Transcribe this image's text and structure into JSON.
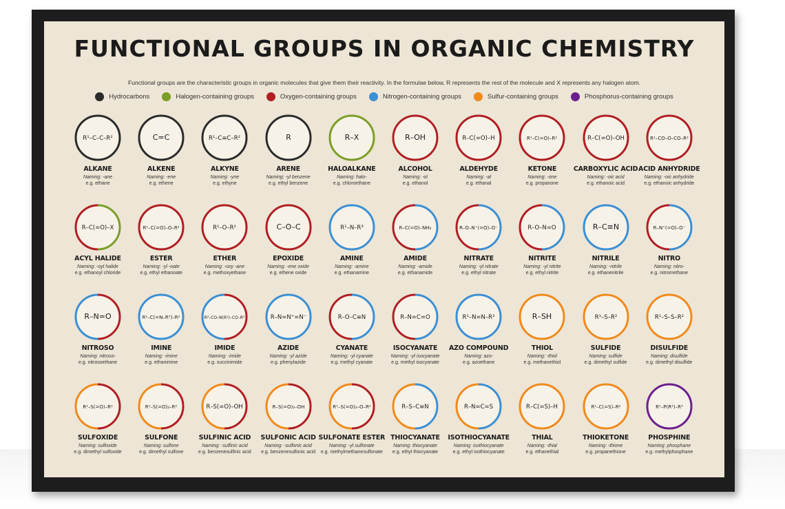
{
  "title": "FUNCTIONAL GROUPS IN ORGANIC CHEMISTRY",
  "intro": "Functional groups are the characteristic groups in organic molecules that give them their reactivity. In the formulae below, R represents the rest of the molecule and X represents any halogen atom.",
  "colors": {
    "hydrocarbons": "#2b2b2b",
    "halogen": "#7a9e26",
    "oxygen": "#b01e23",
    "nitrogen": "#3b8fd4",
    "sulfur": "#f08a1c",
    "phosphorus": "#6a1f8e"
  },
  "legend": [
    {
      "label": "Hydrocarbons",
      "color": "#2b2b2b"
    },
    {
      "label": "Halogen-containing groups",
      "color": "#7a9e26"
    },
    {
      "label": "Oxygen-containing groups",
      "color": "#b01e23"
    },
    {
      "label": "Nitrogen-containing groups",
      "color": "#3b8fd4"
    },
    {
      "label": "Sulfur-containing groups",
      "color": "#f08a1c"
    },
    {
      "label": "Phosphorus-containing groups",
      "color": "#6a1f8e"
    }
  ],
  "groups": [
    {
      "name": "ALKANE",
      "naming": "Naming: -ane",
      "example": "e.g. ethane",
      "formula": "R¹–C–C–R²",
      "colors": [
        "#2b2b2b"
      ]
    },
    {
      "name": "ALKENE",
      "naming": "Naming: -ene",
      "example": "e.g. ethene",
      "formula": "C=C",
      "colors": [
        "#2b2b2b"
      ]
    },
    {
      "name": "ALKYNE",
      "naming": "Naming: -yne",
      "example": "e.g. ethyne",
      "formula": "R¹–C≡C–R²",
      "colors": [
        "#2b2b2b"
      ]
    },
    {
      "name": "ARENE",
      "naming": "Naming: -yl benzene",
      "example": "e.g. ethyl benzene",
      "formula": "R",
      "colors": [
        "#2b2b2b"
      ]
    },
    {
      "name": "HALOALKANE",
      "naming": "Naming: halo-",
      "example": "e.g. chloroethane",
      "formula": "R–X",
      "colors": [
        "#7a9e26"
      ]
    },
    {
      "name": "ALCOHOL",
      "naming": "Naming: -ol",
      "example": "e.g. ethanol",
      "formula": "R–OH",
      "colors": [
        "#b01e23"
      ]
    },
    {
      "name": "ALDEHYDE",
      "naming": "Naming: -al",
      "example": "e.g. ethanal",
      "formula": "R–C(=O)–H",
      "colors": [
        "#b01e23"
      ]
    },
    {
      "name": "KETONE",
      "naming": "Naming: -one",
      "example": "e.g. propanone",
      "formula": "R¹–C(=O)–R²",
      "colors": [
        "#b01e23"
      ]
    },
    {
      "name": "CARBOXYLIC ACID",
      "naming": "Naming: -oic acid",
      "example": "e.g. ethanoic acid",
      "formula": "R–C(=O)–OH",
      "colors": [
        "#b01e23"
      ]
    },
    {
      "name": "ACID ANHYDRIDE",
      "naming": "Naming: -oic anhydride",
      "example": "e.g. ethanoic anhydride",
      "formula": "R¹–CO–O–CO–R²",
      "colors": [
        "#b01e23"
      ]
    },
    {
      "name": "ACYL HALIDE",
      "naming": "Naming: -oyl halide",
      "example": "e.g. ethanoyl chloride",
      "formula": "R–C(=O)–X",
      "colors": [
        "#b01e23",
        "#7a9e26"
      ]
    },
    {
      "name": "ESTER",
      "naming": "Naming: -yl -oate",
      "example": "e.g. ethyl ethanoate",
      "formula": "R¹–C(=O)–O–R²",
      "colors": [
        "#b01e23"
      ]
    },
    {
      "name": "ETHER",
      "naming": "Naming: -oxy -ane",
      "example": "e.g. methoxyethane",
      "formula": "R¹–O–R²",
      "colors": [
        "#b01e23"
      ]
    },
    {
      "name": "EPOXIDE",
      "naming": "Naming: -ene oxide",
      "example": "e.g. ethene oxide",
      "formula": "C–O–C",
      "colors": [
        "#b01e23"
      ]
    },
    {
      "name": "AMINE",
      "naming": "Naming: -amine",
      "example": "e.g. ethanamine",
      "formula": "R¹–N–R³",
      "colors": [
        "#3b8fd4"
      ]
    },
    {
      "name": "AMIDE",
      "naming": "Naming: -amide",
      "example": "e.g. ethanamide",
      "formula": "R–C(=O)–NH₂",
      "colors": [
        "#b01e23",
        "#3b8fd4"
      ]
    },
    {
      "name": "NITRATE",
      "naming": "Naming: -yl nitrate",
      "example": "e.g. ethyl nitrate",
      "formula": "R–O–N⁺(=O)–O⁻",
      "colors": [
        "#b01e23",
        "#3b8fd4"
      ]
    },
    {
      "name": "NITRITE",
      "naming": "Naming: -yl nitrite",
      "example": "e.g. ethyl nitrite",
      "formula": "R–O–N=O",
      "colors": [
        "#b01e23",
        "#3b8fd4"
      ]
    },
    {
      "name": "NITRILE",
      "naming": "Naming: -nitrile",
      "example": "e.g. ethanenitrile",
      "formula": "R–C≡N",
      "colors": [
        "#3b8fd4"
      ]
    },
    {
      "name": "NITRO",
      "naming": "Naming: nitro-",
      "example": "e.g. nitromethane",
      "formula": "R–N⁺(=O)–O⁻",
      "colors": [
        "#b01e23",
        "#3b8fd4"
      ]
    },
    {
      "name": "NITROSO",
      "naming": "Naming: nitroso-",
      "example": "e.g. nitrosoethane",
      "formula": "R–N=O",
      "colors": [
        "#3b8fd4",
        "#b01e23"
      ]
    },
    {
      "name": "IMINE",
      "naming": "Naming: -imine",
      "example": "e.g. ethanimine",
      "formula": "R¹–C(=N–R³)–R²",
      "colors": [
        "#3b8fd4"
      ]
    },
    {
      "name": "IMIDE",
      "naming": "Naming: -imide",
      "example": "e.g. succinimide",
      "formula": "R²–CO–N(R¹)–CO–R³",
      "colors": [
        "#3b8fd4",
        "#b01e23"
      ]
    },
    {
      "name": "AZIDE",
      "naming": "Naming: -yl azide",
      "example": "e.g. phenylazide",
      "formula": "R–N=N⁺=N⁻",
      "colors": [
        "#3b8fd4"
      ]
    },
    {
      "name": "CYANATE",
      "naming": "Naming: -yl cyanate",
      "example": "e.g. methyl cyanate",
      "formula": "R–O–C≡N",
      "colors": [
        "#b01e23",
        "#3b8fd4"
      ]
    },
    {
      "name": "ISOCYANATE",
      "naming": "Naming: -yl isocyanate",
      "example": "e.g. methyl isocyanate",
      "formula": "R–N=C=O",
      "colors": [
        "#b01e23",
        "#3b8fd4"
      ]
    },
    {
      "name": "AZO COMPOUND",
      "naming": "Naming: azo-",
      "example": "e.g. azoethane",
      "formula": "R¹–N=N–R²",
      "colors": [
        "#3b8fd4"
      ]
    },
    {
      "name": "THIOL",
      "naming": "Naming: -thiol",
      "example": "e.g. methanethiol",
      "formula": "R–SH",
      "colors": [
        "#f08a1c"
      ]
    },
    {
      "name": "SULFIDE",
      "naming": "Naming: sulfide",
      "example": "e.g. dimethyl sulfide",
      "formula": "R¹–S–R²",
      "colors": [
        "#f08a1c"
      ]
    },
    {
      "name": "DISULFIDE",
      "naming": "Naming: disulfide",
      "example": "e.g. dimethyl disulfide",
      "formula": "R¹–S–S–R²",
      "colors": [
        "#f08a1c"
      ]
    },
    {
      "name": "SULFOXIDE",
      "naming": "Naming: sulfoxide",
      "example": "e.g. dimethyl sulfoxide",
      "formula": "R¹–S(=O)–R²",
      "colors": [
        "#f08a1c",
        "#b01e23"
      ]
    },
    {
      "name": "SULFONE",
      "naming": "Naming: sulfone",
      "example": "e.g. dimethyl sulfone",
      "formula": "R¹–S(=O)₂–R²",
      "colors": [
        "#f08a1c",
        "#b01e23"
      ]
    },
    {
      "name": "SULFINIC ACID",
      "naming": "Naming: -sulfinic acid",
      "example": "e.g. benzenesulfinic acid",
      "formula": "R–S(=O)–OH",
      "colors": [
        "#f08a1c",
        "#b01e23"
      ]
    },
    {
      "name": "SULFONIC ACID",
      "naming": "Naming: -sulfonic acid",
      "example": "e.g. benzenesulfonic acid",
      "formula": "R–S(=O)₂–OH",
      "colors": [
        "#f08a1c",
        "#b01e23"
      ]
    },
    {
      "name": "SULFONATE ESTER",
      "naming": "Naming: -yl sulfonate",
      "example": "e.g. methylmethanesulfonate",
      "formula": "R¹–S(=O)₂–O–R²",
      "colors": [
        "#f08a1c",
        "#b01e23"
      ]
    },
    {
      "name": "THIOCYANATE",
      "naming": "Naming: thiocyanate",
      "example": "e.g. ethyl thiocyanate",
      "formula": "R–S–C≡N",
      "colors": [
        "#f08a1c",
        "#3b8fd4"
      ]
    },
    {
      "name": "ISOTHIOCYANATE",
      "naming": "Naming: isothiocyanate",
      "example": "e.g. ethyl isothiocyanate",
      "formula": "R–N=C=S",
      "colors": [
        "#f08a1c",
        "#3b8fd4"
      ]
    },
    {
      "name": "THIAL",
      "naming": "Naming: -thial",
      "example": "e.g. ethanethial",
      "formula": "R–C(=S)–H",
      "colors": [
        "#f08a1c"
      ]
    },
    {
      "name": "THIOKETONE",
      "naming": "Naming: -thione",
      "example": "e.g. propanethione",
      "formula": "R¹–C(=S)–R²",
      "colors": [
        "#f08a1c"
      ]
    },
    {
      "name": "PHOSPHINE",
      "naming": "Naming: phosphane",
      "example": "e.g. methylphosphane",
      "formula": "R¹–P(R²)–R³",
      "colors": [
        "#6a1f8e"
      ]
    }
  ]
}
